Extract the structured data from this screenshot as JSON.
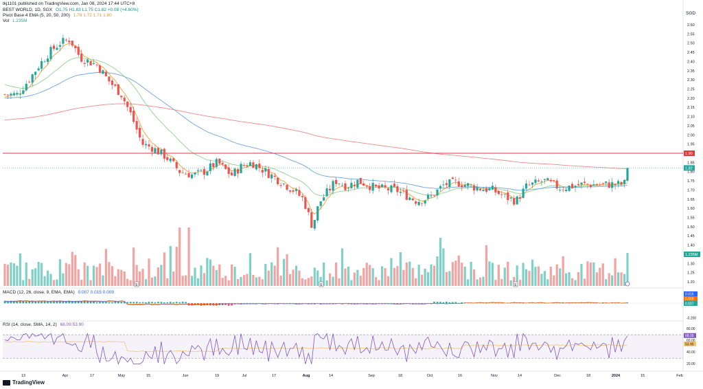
{
  "header": {
    "published": "tkj1101 published on TradingView.com, Jan 08, 2024 17:44 UTC+8",
    "symbol": "BEST WORLD, 1D, SGX",
    "ohlc": "O1.75 H1.83 L1.75 C1.82 +0.08 (+4.60%)",
    "pivot_label": "Pivot Base 4 EMA (5, 20, 50, 200)",
    "pivot_values": "1.76 1.72 1.71 1.80",
    "vol_label": "Vol",
    "vol_value": "1.235M",
    "currency": "SGD"
  },
  "chart_data": {
    "type": "candlestick",
    "price_axis": [
      2.6,
      2.55,
      2.5,
      2.45,
      2.4,
      2.35,
      2.3,
      2.25,
      2.2,
      2.15,
      2.1,
      2.05,
      2.0,
      1.95,
      1.9,
      1.85,
      1.8,
      1.75,
      1.7,
      1.65,
      1.6,
      1.55,
      1.5,
      1.45,
      1.4,
      1.35,
      1.3,
      1.25,
      1.2
    ],
    "ylim": [
      1.17,
      2.63
    ],
    "x_ticks": [
      "13",
      "Apr",
      "17",
      "May",
      "15",
      "Jun",
      "19",
      "Jul",
      "17",
      "Aug",
      "14",
      "Sep",
      "18",
      "Oct",
      "16",
      "Nov",
      "14",
      "Dec",
      "18",
      "2024",
      "15",
      "Feb"
    ],
    "x_tick_bold": [
      false,
      false,
      false,
      false,
      false,
      false,
      false,
      false,
      false,
      true,
      false,
      false,
      false,
      false,
      false,
      false,
      false,
      false,
      false,
      true,
      false,
      false
    ],
    "horizontal_line": 1.9,
    "horizontal_line_label": "1.90",
    "last_price": 1.82,
    "last_price_label": "1.82",
    "volume_label": "1.235M",
    "series": [
      {
        "name": "EMA 5",
        "color": "#f0a030"
      },
      {
        "name": "EMA 20",
        "color": "#8fd18f"
      },
      {
        "name": "EMA 50",
        "color": "#6ea4e0"
      },
      {
        "name": "EMA 200",
        "color": "#ef8a8a"
      }
    ],
    "macd": {
      "label": "MACD (12, 26, close, 9, EMA, EMA)",
      "values_text": "0.007 0.015 0.009",
      "axis_labels": [
        "0.015",
        "0.009",
        "0.007",
        "-0.200"
      ],
      "axis_colors": [
        "#2962ff",
        "#ff6d00",
        "#26a69a",
        "#787b86"
      ]
    },
    "rsi": {
      "label": "RSI (14, close, SMA, 14, 2)",
      "values_text": "68.09 53.90",
      "axis_labels": [
        "80.00",
        "68.09",
        "60.00",
        "53.90",
        "40.00",
        "20.00"
      ],
      "upper": 70,
      "lower": 30,
      "last": 68.09,
      "ma": 53.9
    },
    "colors": {
      "up": "#26a69a",
      "down": "#ef5350",
      "vol_up": "#7fd0c7",
      "vol_down": "#f3a3a1",
      "rsi": "#7e57c2",
      "rsi_ma": "#f5c46b"
    }
  },
  "footer": {
    "brand": "TradingView"
  }
}
